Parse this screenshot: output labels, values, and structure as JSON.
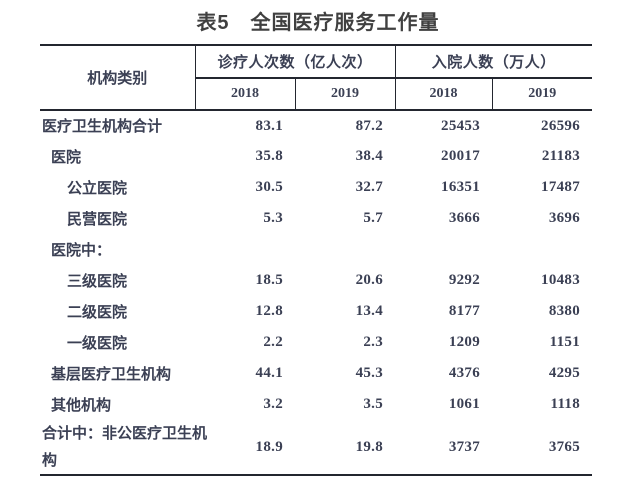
{
  "title": "表5　全国医疗服务工作量",
  "colors": {
    "text": "#3b4054",
    "title": "#404040",
    "border": "#23262f"
  },
  "table": {
    "row_header": "机构类别",
    "col_groups": [
      {
        "label": "诊疗人次数（亿人次）",
        "years": [
          "2018",
          "2019"
        ]
      },
      {
        "label": "入院人数（万人）",
        "years": [
          "2018",
          "2019"
        ]
      }
    ],
    "rows": [
      {
        "label": "医疗卫生机构合计",
        "indent": 0,
        "values": [
          "83.1",
          "87.2",
          "25453",
          "26596"
        ]
      },
      {
        "label": "医院",
        "indent": 1,
        "values": [
          "35.8",
          "38.4",
          "20017",
          "21183"
        ]
      },
      {
        "label": "公立医院",
        "indent": 2,
        "values": [
          "30.5",
          "32.7",
          "16351",
          "17487"
        ]
      },
      {
        "label": "民营医院",
        "indent": 2,
        "values": [
          "5.3",
          "5.7",
          "3666",
          "3696"
        ]
      },
      {
        "label": "医院中：",
        "indent": 1,
        "values": [
          "",
          "",
          "",
          ""
        ]
      },
      {
        "label": "三级医院",
        "indent": 2,
        "values": [
          "18.5",
          "20.6",
          "9292",
          "10483"
        ]
      },
      {
        "label": "二级医院",
        "indent": 2,
        "values": [
          "12.8",
          "13.4",
          "8177",
          "8380"
        ]
      },
      {
        "label": "一级医院",
        "indent": 2,
        "values": [
          "2.2",
          "2.3",
          "1209",
          "1151"
        ]
      },
      {
        "label": "基层医疗卫生机构",
        "indent": 1,
        "values": [
          "44.1",
          "45.3",
          "4376",
          "4295"
        ]
      },
      {
        "label": "其他机构",
        "indent": 1,
        "values": [
          "3.2",
          "3.5",
          "1061",
          "1118"
        ]
      },
      {
        "label": "合计中：非公医疗卫生机构",
        "indent": 0,
        "values": [
          "18.9",
          "19.8",
          "3737",
          "3765"
        ]
      }
    ]
  }
}
